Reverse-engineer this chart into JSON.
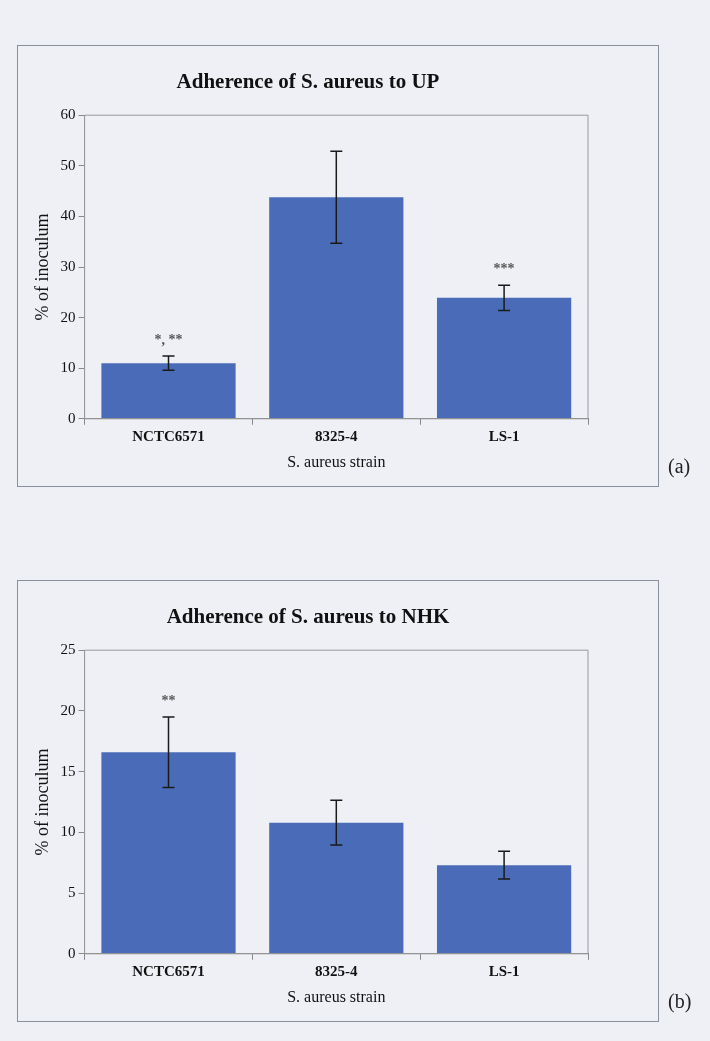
{
  "chart_data": [
    {
      "type": "bar",
      "title": "Adherence of S. aureus to UP",
      "xlabel": "S. aureus strain",
      "ylabel": "% of inoculum",
      "categories": [
        "NCTC6571",
        "8325-4",
        "LS-1"
      ],
      "values": [
        11.0,
        43.8,
        23.9
      ],
      "errors": [
        1.4,
        9.1,
        2.5
      ],
      "color": "#4a6cb8",
      "ylim": [
        0,
        60
      ],
      "yticks": [
        0,
        10,
        20,
        30,
        40,
        50,
        60
      ],
      "grid": false,
      "legend": false,
      "annotations": [
        {
          "text": "*, **",
          "x": "NCTC6571",
          "y": 12.4
        },
        {
          "text": "***",
          "x": "LS-1",
          "y": 26.4
        },
        "(a)"
      ]
    },
    {
      "type": "bar",
      "title": "Adherence of S. aureus to NHK",
      "xlabel": "S. aureus strain",
      "ylabel": "% of inoculum",
      "categories": [
        "NCTC6571",
        "8325-4",
        "LS-1"
      ],
      "values": [
        16.6,
        10.8,
        7.3
      ],
      "errors": [
        2.9,
        1.85,
        1.15
      ],
      "color": "#4a6cb8",
      "ylim": [
        0,
        25
      ],
      "yticks": [
        0,
        5,
        10,
        15,
        20,
        25
      ],
      "grid": false,
      "legend": false,
      "annotations": [
        {
          "text": "**",
          "x": "NCTC6571",
          "y": 19.5
        },
        "(b)"
      ]
    }
  ]
}
